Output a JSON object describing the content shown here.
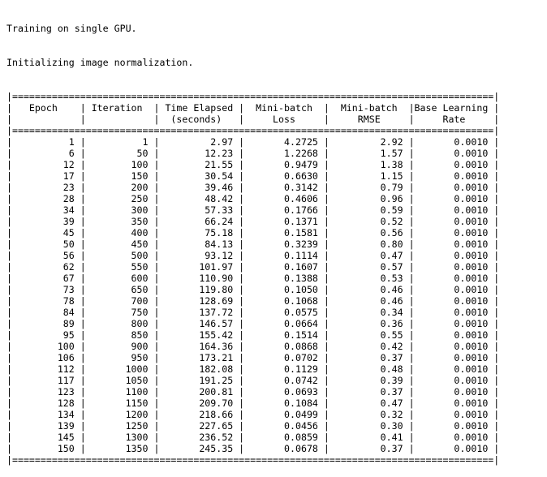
{
  "console": {
    "message_lines": [
      "Training on single GPU.",
      "Initializing image normalization."
    ],
    "header_top": [
      "Epoch",
      "Iteration",
      "Time Elapsed",
      "Mini-batch",
      "Mini-batch",
      "Base Learning"
    ],
    "header_bottom": [
      "",
      "",
      "(seconds)",
      "Loss",
      "RMSE",
      "Rate"
    ],
    "rows": [
      [
        "1",
        "1",
        "2.97",
        "4.2725",
        "2.92",
        "0.0010"
      ],
      [
        "6",
        "50",
        "12.23",
        "1.2268",
        "1.57",
        "0.0010"
      ],
      [
        "12",
        "100",
        "21.55",
        "0.9479",
        "1.38",
        "0.0010"
      ],
      [
        "17",
        "150",
        "30.54",
        "0.6630",
        "1.15",
        "0.0010"
      ],
      [
        "23",
        "200",
        "39.46",
        "0.3142",
        "0.79",
        "0.0010"
      ],
      [
        "28",
        "250",
        "48.42",
        "0.4606",
        "0.96",
        "0.0010"
      ],
      [
        "34",
        "300",
        "57.33",
        "0.1766",
        "0.59",
        "0.0010"
      ],
      [
        "39",
        "350",
        "66.24",
        "0.1371",
        "0.52",
        "0.0010"
      ],
      [
        "45",
        "400",
        "75.18",
        "0.1581",
        "0.56",
        "0.0010"
      ],
      [
        "50",
        "450",
        "84.13",
        "0.3239",
        "0.80",
        "0.0010"
      ],
      [
        "56",
        "500",
        "93.12",
        "0.1114",
        "0.47",
        "0.0010"
      ],
      [
        "62",
        "550",
        "101.97",
        "0.1607",
        "0.57",
        "0.0010"
      ],
      [
        "67",
        "600",
        "110.90",
        "0.1388",
        "0.53",
        "0.0010"
      ],
      [
        "73",
        "650",
        "119.80",
        "0.1050",
        "0.46",
        "0.0010"
      ],
      [
        "78",
        "700",
        "128.69",
        "0.1068",
        "0.46",
        "0.0010"
      ],
      [
        "84",
        "750",
        "137.72",
        "0.0575",
        "0.34",
        "0.0010"
      ],
      [
        "89",
        "800",
        "146.57",
        "0.0664",
        "0.36",
        "0.0010"
      ],
      [
        "95",
        "850",
        "155.42",
        "0.1514",
        "0.55",
        "0.0010"
      ],
      [
        "100",
        "900",
        "164.36",
        "0.0868",
        "0.42",
        "0.0010"
      ],
      [
        "106",
        "950",
        "173.21",
        "0.0702",
        "0.37",
        "0.0010"
      ],
      [
        "112",
        "1000",
        "182.08",
        "0.1129",
        "0.48",
        "0.0010"
      ],
      [
        "117",
        "1050",
        "191.25",
        "0.0742",
        "0.39",
        "0.0010"
      ],
      [
        "123",
        "1100",
        "200.81",
        "0.0693",
        "0.37",
        "0.0010"
      ],
      [
        "128",
        "1150",
        "209.70",
        "0.1084",
        "0.47",
        "0.0010"
      ],
      [
        "134",
        "1200",
        "218.66",
        "0.0499",
        "0.32",
        "0.0010"
      ],
      [
        "139",
        "1250",
        "227.65",
        "0.0456",
        "0.30",
        "0.0010"
      ],
      [
        "145",
        "1300",
        "236.52",
        "0.0859",
        "0.41",
        "0.0010"
      ],
      [
        "150",
        "1350",
        "245.35",
        "0.0678",
        "0.37",
        "0.0010"
      ]
    ]
  }
}
